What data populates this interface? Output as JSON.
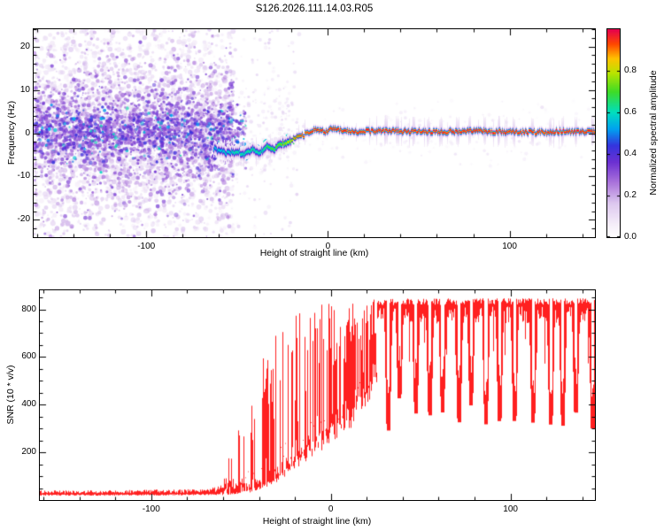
{
  "title": "S126.2026.111.14.03.R05",
  "colors": {
    "background": "#ffffff",
    "axis": "#000000",
    "snr_line": "#ff2020"
  },
  "colormap_stops": [
    [
      0.0,
      "#ffffff"
    ],
    [
      0.06,
      "#f5eef9"
    ],
    [
      0.16,
      "#ddc8ef"
    ],
    [
      0.26,
      "#ab74db"
    ],
    [
      0.36,
      "#6c30d2"
    ],
    [
      0.44,
      "#3434de"
    ],
    [
      0.52,
      "#00a2f0"
    ],
    [
      0.6,
      "#00debf"
    ],
    [
      0.7,
      "#3fdc26"
    ],
    [
      0.79,
      "#b9e400"
    ],
    [
      0.86,
      "#ffc200"
    ],
    [
      0.93,
      "#ff4700"
    ],
    [
      1.0,
      "#e6004e"
    ]
  ],
  "chart_data": [
    {
      "type": "heatmap",
      "name": "spectrogram",
      "title": "S126.2026.111.14.03.R05",
      "xlabel": "Height of straight line (km)",
      "ylabel": "Frequency (Hz)",
      "xlim": [
        -162,
        147
      ],
      "ylim": [
        -24,
        24
      ],
      "xticks": [
        -100,
        0,
        100
      ],
      "x_minor_step": 20,
      "yticks": [
        20,
        10,
        0,
        -10,
        -20
      ],
      "y_minor_step": 2,
      "colorbar": {
        "label": "Normalized spectral amplitude",
        "range": [
          0,
          1
        ],
        "ticks": [
          0,
          0.2,
          0.4,
          0.6,
          0.8
        ],
        "tick_labels": [
          "0.0",
          "0.2",
          "0.4",
          "0.6",
          "0.8"
        ]
      },
      "noise_region": {
        "x_start": -162,
        "x_end": -52,
        "band_sigma_hz": 3.2,
        "spread_sigma_hz": 8.5
      },
      "signal_trace": {
        "x": [
          -63,
          -56,
          -50,
          -46,
          -42,
          -38,
          -34,
          -30,
          -26,
          -22,
          -18,
          -14,
          -10,
          -6,
          -2,
          2,
          8,
          16,
          26,
          40,
          60,
          80,
          100,
          115,
          130,
          147
        ],
        "freq_hz": [
          -3.5,
          -4.5,
          -4.0,
          -5.0,
          -3.5,
          -4.5,
          -3.0,
          -3.5,
          -2.5,
          -2.0,
          -1.0,
          -0.5,
          0.5,
          1.0,
          0.5,
          1.0,
          0.8,
          0.5,
          0.6,
          0.5,
          0.4,
          0.6,
          0.4,
          0.3,
          0.5,
          0.4
        ],
        "amplitude": [
          0.42,
          0.45,
          0.5,
          0.48,
          0.52,
          0.5,
          0.55,
          0.58,
          0.62,
          0.68,
          0.78,
          0.88,
          0.93,
          0.95,
          0.96,
          0.97,
          0.97,
          0.97,
          0.97,
          0.97,
          0.96,
          0.97,
          0.96,
          0.95,
          0.97,
          0.97
        ]
      },
      "description": "Speckled purple noise left of -52 km concentrated near 0 Hz; coherent red/orange signal line near 0-1 Hz emerging from -60 km to right edge with cyan/green onset"
    },
    {
      "type": "line",
      "name": "snr",
      "xlabel": "Height of straight line (km)",
      "ylabel": "SNR (10 * v/v)",
      "xlim": [
        -162,
        147
      ],
      "ylim": [
        0,
        880
      ],
      "xticks": [
        -100,
        0,
        100
      ],
      "x_minor_step": 20,
      "yticks": [
        200,
        400,
        600,
        800
      ],
      "y_minor_step": 50,
      "series_color": "#ff2020",
      "envelope": {
        "x": [
          -162,
          -120,
          -70,
          -62,
          -55,
          -50,
          -45,
          -40,
          -35,
          -30,
          -25,
          -20,
          -15,
          -10,
          -5,
          0,
          5,
          10,
          15,
          20,
          26,
          30,
          147
        ],
        "lo": [
          22,
          22,
          24,
          25,
          28,
          32,
          40,
          55,
          70,
          90,
          120,
          150,
          190,
          230,
          260,
          290,
          320,
          360,
          400,
          420,
          600,
          720,
          740
        ],
        "hi": [
          40,
          42,
          46,
          60,
          230,
          380,
          470,
          600,
          640,
          700,
          740,
          770,
          800,
          815,
          825,
          832,
          838,
          840,
          842,
          842,
          845,
          845,
          848
        ]
      },
      "plateau": {
        "start_x": 26,
        "top": 845,
        "band_fuzz": 70,
        "notch_start_x": 32,
        "notch_spacing_km": 8,
        "notch_depth_range": [
          290,
          430
        ]
      },
      "description": "Flat noise floor ~30 until -60 km, spiky rise from -55 to +25 km, plateau ~800-845 with quasi-periodic deep notches to ~300-430"
    }
  ]
}
